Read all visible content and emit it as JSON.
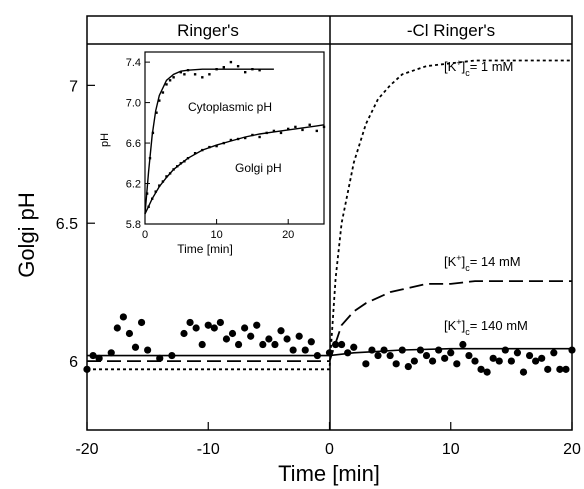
{
  "chart_data": [
    {
      "type": "line",
      "xlabel": "Time [min]",
      "ylabel": "Golgi pH",
      "xlim": [
        -20,
        20
      ],
      "ylim": [
        5.75,
        7.15
      ],
      "xticks": [
        -20,
        -10,
        0,
        10,
        20
      ],
      "yticks": [
        6,
        6.5,
        7
      ],
      "ytick_labels": [
        "6",
        "6.5",
        "7"
      ],
      "panels": [
        "Ringer's",
        "-Cl Ringer's"
      ],
      "series": [
        {
          "name": "[K+]c = 1 mM",
          "style": "dotted",
          "x": [
            -20,
            -10,
            0,
            0.5,
            1,
            2,
            3,
            4,
            5,
            6,
            8,
            10,
            12,
            15,
            20
          ],
          "y": [
            5.97,
            5.97,
            5.97,
            6.3,
            6.5,
            6.72,
            6.86,
            6.95,
            7.0,
            7.04,
            7.07,
            7.08,
            7.09,
            7.09,
            7.09
          ]
        },
        {
          "name": "[K+]c = 14 mM",
          "style": "dashed",
          "x": [
            -20,
            -10,
            0,
            1,
            2,
            3,
            4,
            5,
            6,
            8,
            10,
            12,
            15,
            20
          ],
          "y": [
            6.0,
            6.0,
            6.0,
            6.13,
            6.18,
            6.21,
            6.23,
            6.25,
            6.26,
            6.28,
            6.28,
            6.29,
            6.29,
            6.29
          ]
        },
        {
          "name": "[K+]c = 140 mM",
          "style": "solid",
          "x": [
            -20,
            -10,
            0,
            2,
            4,
            6,
            10,
            15,
            20
          ],
          "y": [
            6.02,
            6.02,
            6.02,
            6.03,
            6.035,
            6.04,
            6.045,
            6.045,
            6.045
          ]
        },
        {
          "name": "",
          "style": "dots",
          "x": [
            -20,
            -19.5,
            -19,
            -18,
            -17.5,
            -17,
            -16.5,
            -16,
            -15.5,
            -15,
            -14,
            -13,
            -12,
            -11.5,
            -11,
            -10.5,
            -10,
            -9.5,
            -9,
            -8.5,
            -8,
            -7.5,
            -7,
            -6.5,
            -6,
            -5.5,
            -5,
            -4.5,
            -4,
            -3.5,
            -3,
            -2.5,
            -2,
            -1.5,
            -1,
            0,
            0.5,
            1,
            1.5,
            2,
            3,
            3.5,
            4,
            4.5,
            5,
            5.5,
            6,
            6.5,
            7,
            7.5,
            8,
            8.5,
            9,
            9.5,
            10,
            10.5,
            11,
            11.5,
            12,
            12.5,
            13,
            13.5,
            14,
            14.5,
            15,
            15.5,
            16,
            16.5,
            17,
            17.5,
            18,
            18.5,
            19,
            19.5,
            20
          ],
          "y": [
            5.97,
            6.02,
            6.01,
            6.03,
            6.12,
            6.16,
            6.1,
            6.05,
            6.14,
            6.04,
            6.01,
            6.02,
            6.1,
            6.14,
            6.12,
            6.06,
            6.13,
            6.12,
            6.14,
            6.08,
            6.1,
            6.06,
            6.12,
            6.09,
            6.13,
            6.06,
            6.08,
            6.06,
            6.11,
            6.08,
            6.04,
            6.09,
            6.04,
            6.07,
            6.02,
            6.03,
            6.06,
            6.06,
            6.03,
            6.05,
            5.99,
            6.04,
            6.02,
            6.04,
            6.02,
            5.99,
            6.04,
            5.98,
            6.0,
            6.04,
            6.02,
            6.0,
            6.04,
            6.01,
            6.03,
            5.99,
            6.06,
            6.02,
            6.0,
            5.97,
            5.96,
            6.01,
            6.0,
            6.04,
            6.0,
            6.03,
            5.96,
            6.02,
            6.0,
            6.01,
            5.97,
            6.03,
            5.97,
            5.97,
            6.04
          ]
        }
      ],
      "annotations": [
        "[K+]c = 1 mM",
        "[K+]c = 14 mM",
        "[K+]c = 140 mM"
      ]
    },
    {
      "type": "line",
      "xlabel": "Time [min]",
      "ylabel": "pH",
      "xlim": [
        0,
        25
      ],
      "ylim": [
        5.8,
        7.5
      ],
      "xticks": [
        0,
        10,
        20
      ],
      "yticks": [
        5.8,
        6.2,
        6.6,
        7.0,
        7.4
      ],
      "ytick_labels": [
        "5.8",
        "6.2",
        "6.6",
        "7.0",
        "7.4"
      ],
      "series": [
        {
          "name": "Cytoplasmic pH",
          "fit_x": [
            0,
            0.5,
            1,
            1.5,
            2,
            3,
            4,
            5,
            6,
            8,
            10,
            14,
            18
          ],
          "fit_y": [
            5.9,
            6.32,
            6.68,
            6.92,
            7.07,
            7.22,
            7.28,
            7.31,
            7.32,
            7.33,
            7.33,
            7.33,
            7.33
          ],
          "points_x": [
            0.3,
            0.7,
            1.1,
            1.6,
            2.0,
            2.5,
            3.0,
            3.5,
            4.0,
            5.0,
            5.5,
            6.0,
            7.0,
            8.0,
            9.0,
            10.0,
            11.0,
            12.0,
            13.0,
            14.0,
            15.0,
            16.0
          ],
          "points_y": [
            6.1,
            6.45,
            6.7,
            6.9,
            7.02,
            7.1,
            7.18,
            7.22,
            7.25,
            7.3,
            7.28,
            7.32,
            7.28,
            7.25,
            7.28,
            7.33,
            7.35,
            7.4,
            7.36,
            7.3,
            7.33,
            7.32
          ]
        },
        {
          "name": "Golgi pH",
          "fit_x": [
            0,
            1,
            2,
            3,
            4,
            6,
            8,
            10,
            12,
            14,
            16,
            18,
            20,
            22,
            24,
            25
          ],
          "fit_y": [
            5.9,
            6.05,
            6.17,
            6.26,
            6.34,
            6.45,
            6.53,
            6.58,
            6.62,
            6.66,
            6.69,
            6.71,
            6.73,
            6.75,
            6.77,
            6.78
          ],
          "points_x": [
            0.5,
            1,
            1.5,
            2,
            2.5,
            3,
            3.5,
            4,
            4.5,
            5,
            5.5,
            6,
            7,
            8,
            9,
            10,
            11,
            12,
            13,
            14,
            15,
            16,
            17,
            18,
            19,
            20,
            21,
            22,
            23,
            24,
            25
          ],
          "points_y": [
            5.97,
            6.05,
            6.12,
            6.18,
            6.22,
            6.27,
            6.3,
            6.34,
            6.37,
            6.4,
            6.42,
            6.45,
            6.5,
            6.53,
            6.56,
            6.57,
            6.6,
            6.63,
            6.64,
            6.65,
            6.68,
            6.66,
            6.7,
            6.72,
            6.7,
            6.74,
            6.76,
            6.73,
            6.78,
            6.72,
            6.76
          ]
        }
      ]
    }
  ]
}
